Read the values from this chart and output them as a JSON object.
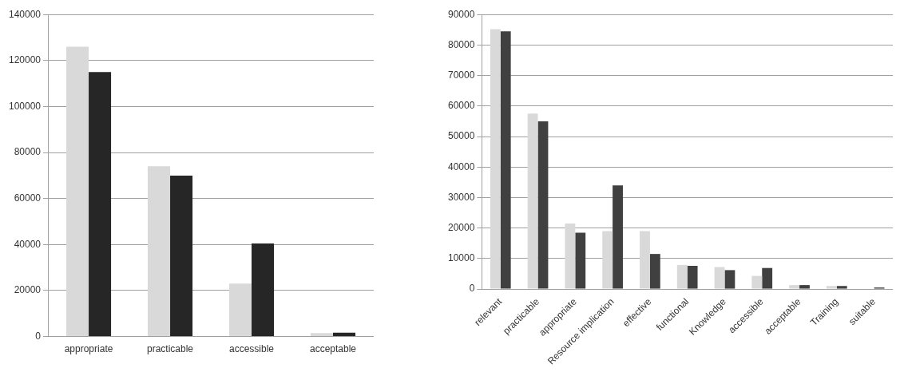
{
  "chart_data": [
    {
      "type": "bar",
      "categories": [
        "appropriate",
        "practicable",
        "accessible",
        "acceptable"
      ],
      "series": [
        {
          "color": "#d9d9d9",
          "values": [
            126000,
            74000,
            23000,
            1500
          ]
        },
        {
          "color": "#262626",
          "values": [
            115000,
            70000,
            40500,
            1700
          ]
        }
      ],
      "ylim": [
        0,
        140000
      ],
      "yticks": [
        0,
        20000,
        40000,
        60000,
        80000,
        100000,
        120000,
        140000
      ],
      "grid": "y",
      "legend": false
    },
    {
      "type": "bar",
      "categories": [
        "relevant",
        "practicable",
        "appropriate",
        "Resource implication",
        "effective",
        "functional",
        "Knowledge",
        "accessible",
        "acceptable",
        "Training",
        "suitable"
      ],
      "series": [
        {
          "color": "#d9d9d9",
          "values": [
            85200,
            57500,
            21500,
            19000,
            19000,
            7900,
            7200,
            4300,
            1300,
            1000,
            null
          ]
        },
        {
          "color": "#404040",
          "values": [
            84500,
            55000,
            18500,
            34000,
            11500,
            7600,
            6200,
            6900,
            1300,
            1000,
            500
          ]
        }
      ],
      "ylim": [
        0,
        90000
      ],
      "yticks": [
        0,
        10000,
        20000,
        30000,
        40000,
        50000,
        60000,
        70000,
        80000,
        90000
      ],
      "grid": "y",
      "legend": false
    }
  ]
}
